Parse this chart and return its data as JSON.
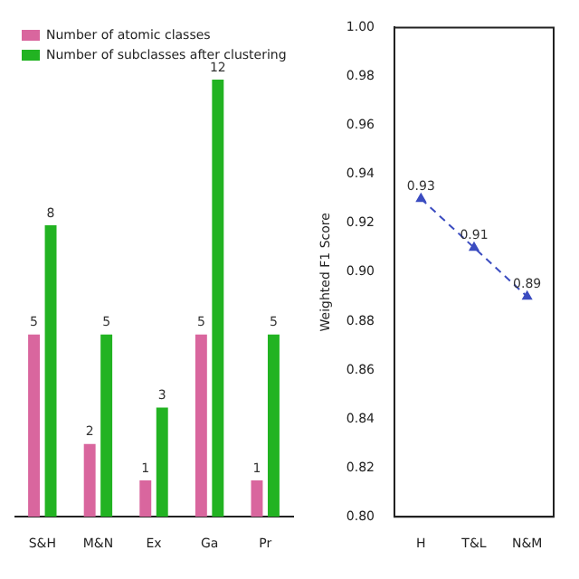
{
  "chart_data": [
    {
      "type": "bar",
      "categories": [
        "S&H",
        "M&N",
        "Ex",
        "Ga",
        "Pr"
      ],
      "legend": "top",
      "data_labels": true,
      "tick_labels": "x",
      "series": [
        {
          "name": "Number of atomic classes",
          "color": "#d9669e",
          "values": [
            5,
            2,
            1,
            5,
            1
          ]
        },
        {
          "name": "Number of subclasses after clustering",
          "color": "#22b322",
          "values": [
            8,
            5,
            3,
            12,
            5
          ]
        }
      ]
    },
    {
      "type": "line",
      "categories": [
        "H",
        "T&L",
        "N&M"
      ],
      "ylabel": "Weighted F1 Score",
      "ylim": [
        0.8,
        1.0
      ],
      "yticks": [
        {
          "value": 0.8,
          "label": "0.80"
        },
        0.82,
        0.84,
        0.86,
        0.88,
        {
          "value": 0.9,
          "label": "0.90"
        },
        0.92,
        0.94,
        0.96,
        0.98,
        {
          "value": 1.0,
          "label": "1.00"
        }
      ],
      "data_labels": true,
      "marker": "triangle",
      "line_style": "dashed",
      "grid": false,
      "series": [
        {
          "color": "#3b4cc0",
          "values": [
            0.93,
            0.91,
            0.89
          ]
        }
      ]
    }
  ]
}
